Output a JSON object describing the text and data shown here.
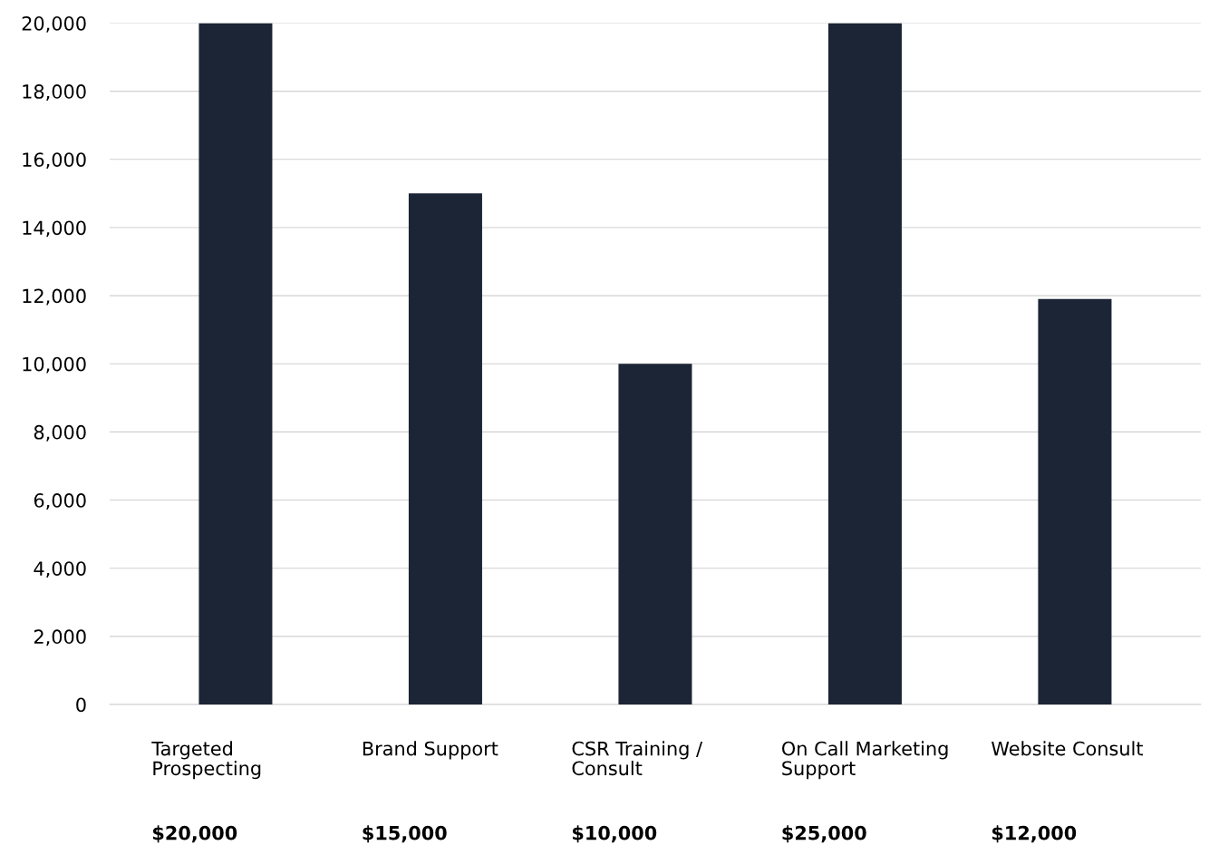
{
  "chart_data": {
    "type": "bar",
    "categories": [
      "Targeted\nProspecting",
      "Brand Support",
      "CSR Training /\nConsult",
      "On Call Marketing\nSupport",
      "Website Consult"
    ],
    "values": [
      20000,
      15000,
      10000,
      20000,
      11900
    ],
    "color": "#1b2535",
    "ylim": [
      0,
      20000
    ],
    "yticks": [
      {
        "value": 0,
        "label": "0"
      },
      {
        "value": 2000,
        "label": "2,000"
      },
      {
        "value": 4000,
        "label": "4,000"
      },
      {
        "value": 6000,
        "label": "6,000"
      },
      {
        "value": 8000,
        "label": "8,000"
      },
      {
        "value": 10000,
        "label": "10,000"
      },
      {
        "value": 12000,
        "label": "12,000"
      },
      {
        "value": 14000,
        "label": "14,000"
      },
      {
        "value": 16000,
        "label": "16,000"
      },
      {
        "value": 18000,
        "label": "18,000"
      },
      {
        "value": 20000,
        "label": "20,000"
      }
    ],
    "grid": "y",
    "annotations": [
      "$20,000",
      "$15,000",
      "$10,000",
      "$25,000",
      "$12,000"
    ]
  }
}
